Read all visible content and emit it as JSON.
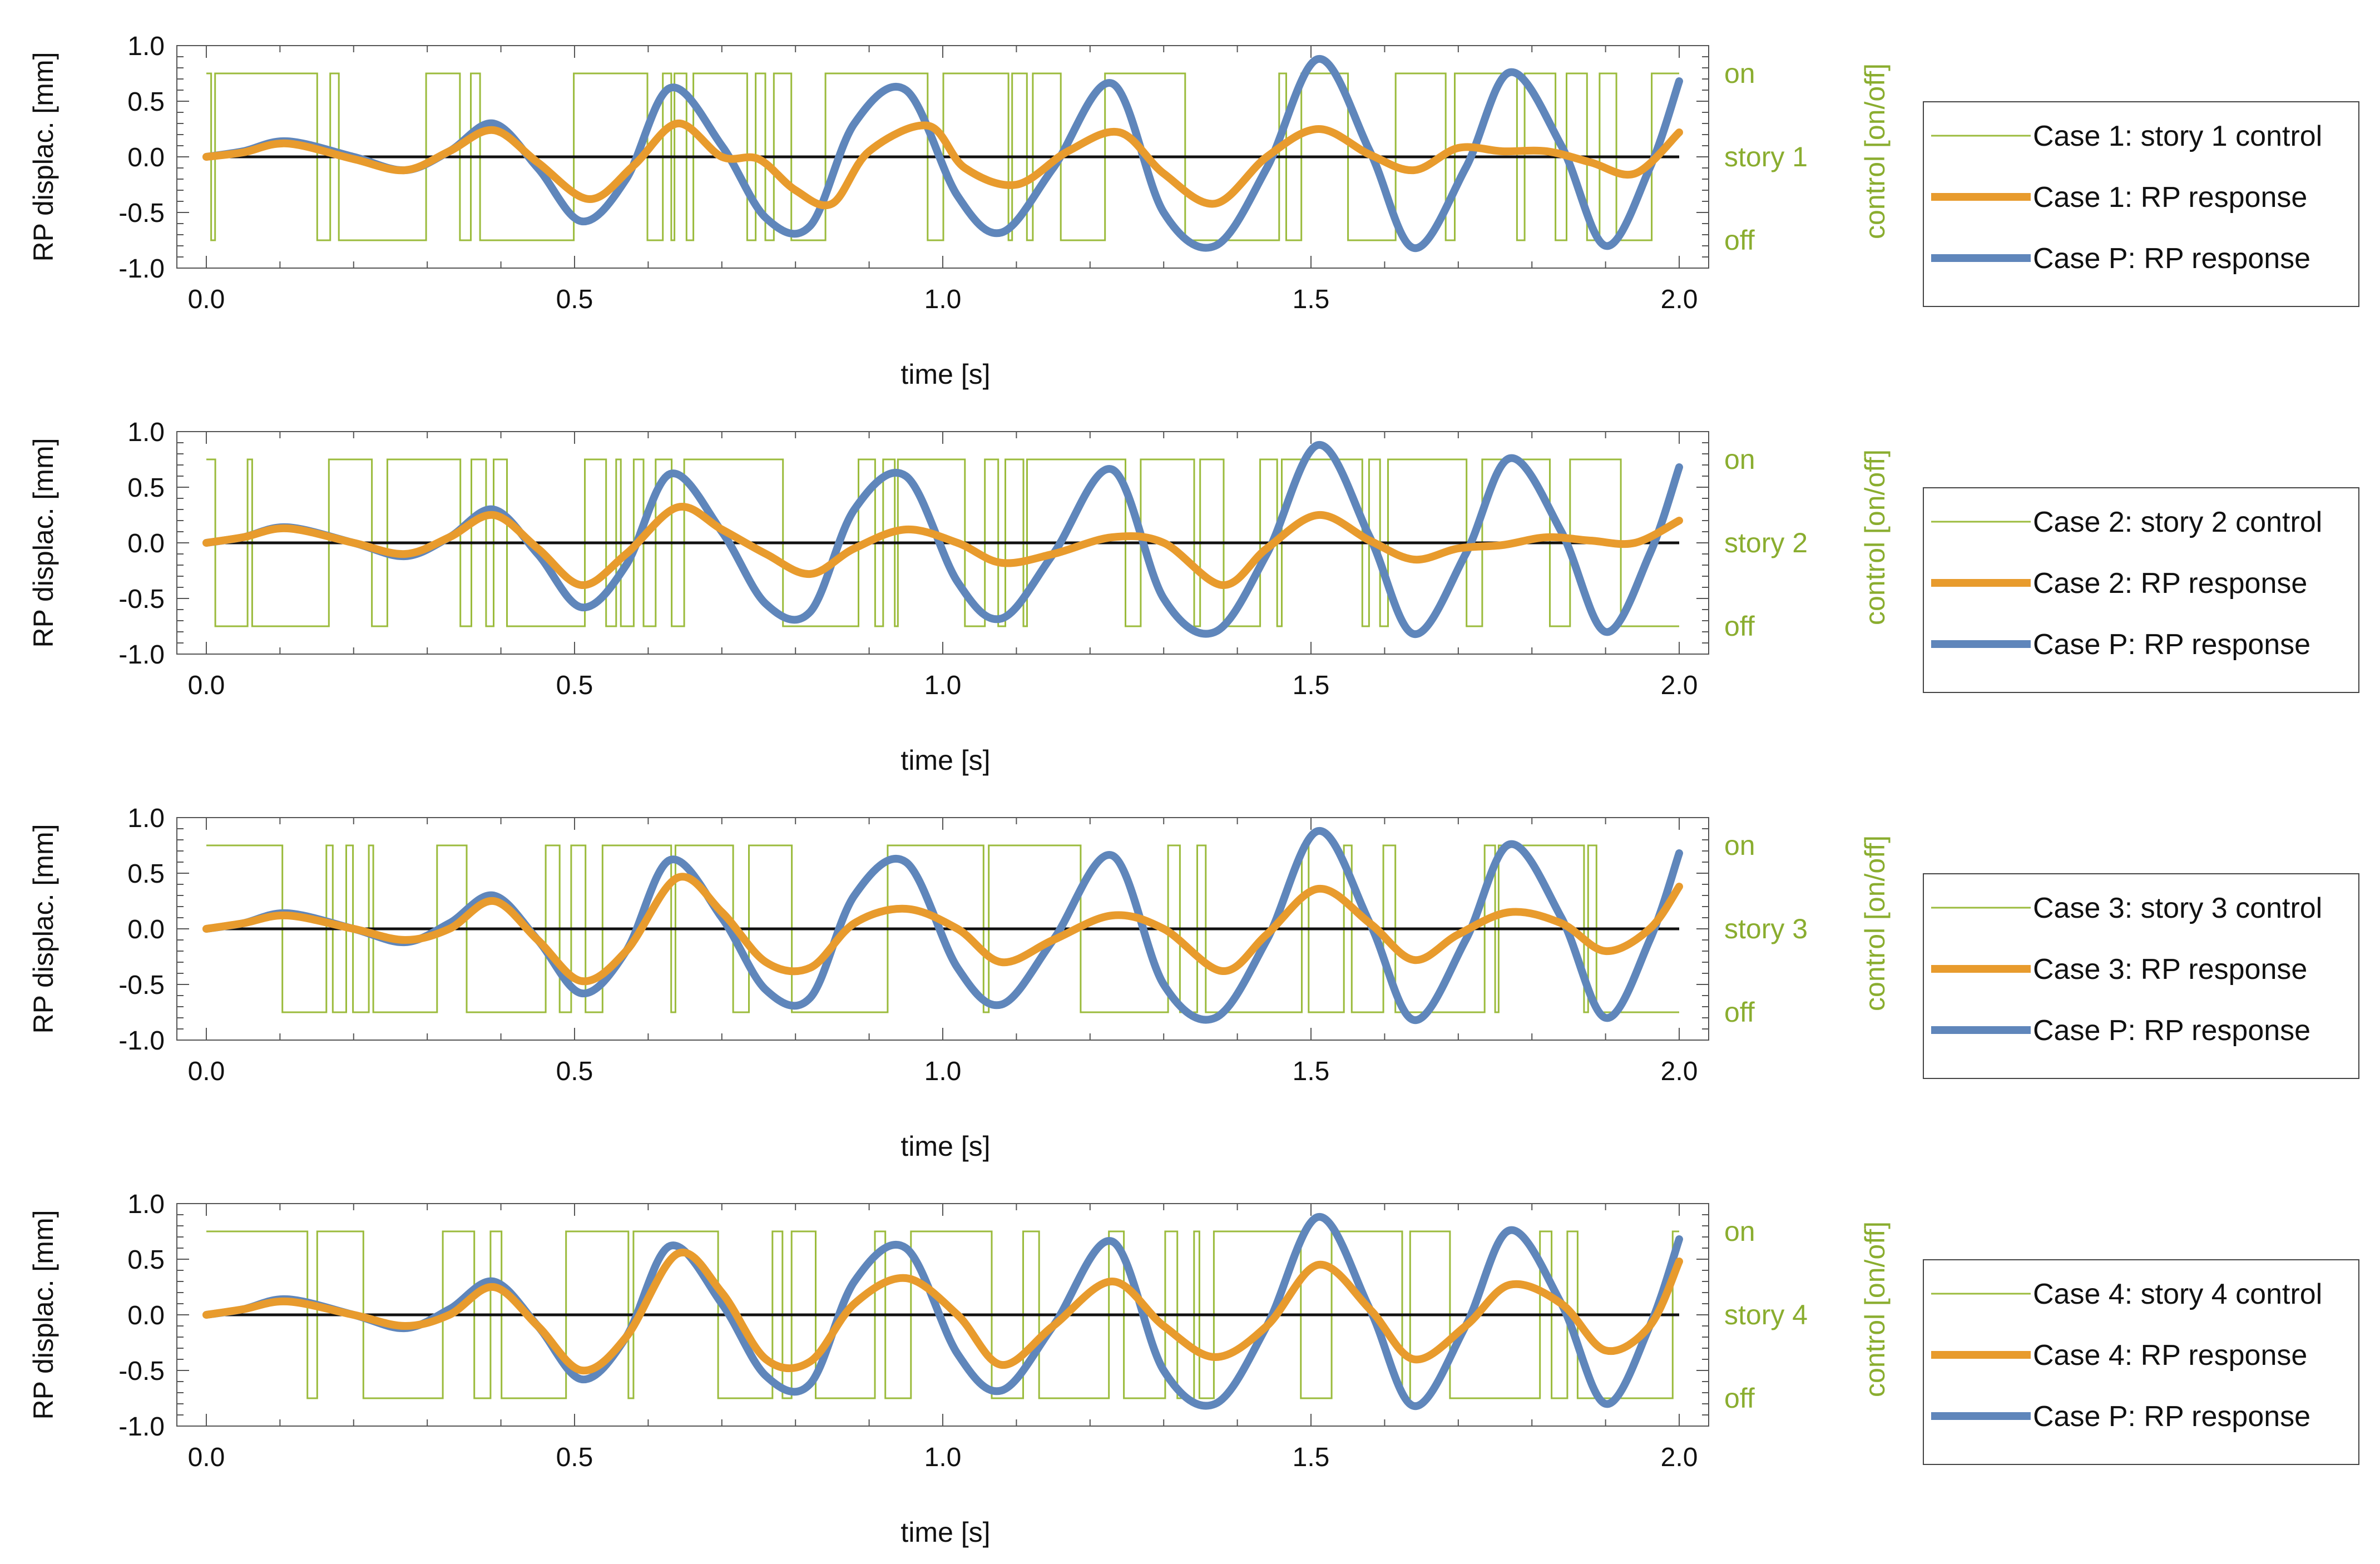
{
  "colors": {
    "control": "#9bbb3c",
    "case_rp": "#e89b2d",
    "case_p": "#5f86bb",
    "axis": "#222222",
    "ctrl_text": "#8aad2f"
  },
  "axes": {
    "xlabel": "time [s]",
    "ylabel": "RP displac. [mm]",
    "right_label": "control [on/off]",
    "xlim": [
      -0.04,
      2.04
    ],
    "ylim": [
      -1.0,
      1.0
    ],
    "xticks": [
      "0.0",
      "0.5",
      "1.0",
      "1.5",
      "2.0"
    ],
    "yticks": [
      "1.0",
      "0.5",
      "0.0",
      "-0.5",
      "-1.0"
    ],
    "ctrl_on_label": "on",
    "ctrl_off_label": "off"
  },
  "chart_data": [
    {
      "type": "line",
      "story_label": "story 1",
      "legend": [
        "Case 1: story 1 control",
        "Case 1: RP response",
        "Case P: RP response"
      ],
      "series": [
        {
          "name": "Case P: RP response",
          "x": [
            0,
            0.05,
            0.11,
            0.2,
            0.27,
            0.33,
            0.39,
            0.45,
            0.51,
            0.57,
            0.63,
            0.7,
            0.76,
            0.82,
            0.88,
            0.95,
            1.02,
            1.08,
            1.15,
            1.23,
            1.3,
            1.37,
            1.44,
            1.51,
            1.58,
            1.64,
            1.71,
            1.77,
            1.84,
            1.9,
            1.96,
            2.0
          ],
          "y": [
            0,
            0.05,
            0.14,
            0.0,
            -0.12,
            0.05,
            0.3,
            -0.1,
            -0.58,
            -0.2,
            0.62,
            0.1,
            -0.55,
            -0.62,
            0.3,
            0.6,
            -0.35,
            -0.68,
            -0.1,
            0.66,
            -0.5,
            -0.8,
            -0.1,
            0.88,
            0.05,
            -0.82,
            -0.1,
            0.76,
            0.1,
            -0.8,
            -0.1,
            0.68
          ]
        },
        {
          "name": "Case 1: RP response",
          "x": [
            0,
            0.05,
            0.11,
            0.2,
            0.27,
            0.33,
            0.39,
            0.45,
            0.52,
            0.58,
            0.64,
            0.7,
            0.75,
            0.8,
            0.85,
            0.9,
            0.98,
            1.03,
            1.1,
            1.17,
            1.24,
            1.3,
            1.37,
            1.44,
            1.51,
            1.58,
            1.64,
            1.7,
            1.76,
            1.82,
            1.88,
            1.94,
            2.0
          ],
          "y": [
            0,
            0.04,
            0.12,
            -0.02,
            -0.12,
            0.05,
            0.24,
            -0.05,
            -0.38,
            -0.08,
            0.3,
            0.0,
            -0.02,
            -0.3,
            -0.42,
            0.05,
            0.28,
            -0.1,
            -0.25,
            0.05,
            0.22,
            -0.15,
            -0.42,
            0.0,
            0.25,
            0.02,
            -0.12,
            0.08,
            0.05,
            0.05,
            -0.05,
            -0.15,
            0.22
          ]
        }
      ],
      "control": [
        0.75,
        -0.75,
        0.75,
        -0.75,
        0.75,
        -0.75,
        0.75,
        -0.75,
        0.75,
        -0.75,
        0.75,
        -0.75,
        0.75,
        -0.75,
        0.75,
        -0.75
      ]
    },
    {
      "type": "line",
      "story_label": "story 2",
      "legend": [
        "Case 2: story 2 control",
        "Case 2: RP response",
        "Case P: RP response"
      ],
      "series": [
        {
          "name": "Case P: RP response",
          "x": [
            0,
            0.05,
            0.11,
            0.2,
            0.27,
            0.33,
            0.39,
            0.45,
            0.51,
            0.57,
            0.63,
            0.7,
            0.76,
            0.82,
            0.88,
            0.95,
            1.02,
            1.08,
            1.15,
            1.23,
            1.3,
            1.37,
            1.44,
            1.51,
            1.58,
            1.64,
            1.71,
            1.77,
            1.84,
            1.9,
            1.96,
            2.0
          ],
          "y": [
            0,
            0.05,
            0.14,
            0.0,
            -0.12,
            0.05,
            0.3,
            -0.1,
            -0.58,
            -0.2,
            0.62,
            0.1,
            -0.55,
            -0.62,
            0.3,
            0.6,
            -0.35,
            -0.68,
            -0.1,
            0.66,
            -0.5,
            -0.8,
            -0.1,
            0.88,
            0.05,
            -0.82,
            -0.1,
            0.76,
            0.1,
            -0.8,
            -0.1,
            0.68
          ]
        },
        {
          "name": "Case 2: RP response",
          "x": [
            0,
            0.05,
            0.11,
            0.2,
            0.27,
            0.33,
            0.39,
            0.45,
            0.51,
            0.57,
            0.64,
            0.7,
            0.76,
            0.82,
            0.88,
            0.95,
            1.02,
            1.08,
            1.15,
            1.23,
            1.3,
            1.38,
            1.44,
            1.51,
            1.58,
            1.64,
            1.7,
            1.76,
            1.82,
            1.88,
            1.94,
            2.0
          ],
          "y": [
            0,
            0.05,
            0.13,
            0.0,
            -0.1,
            0.05,
            0.25,
            -0.05,
            -0.38,
            -0.1,
            0.32,
            0.12,
            -0.1,
            -0.28,
            -0.05,
            0.12,
            0.0,
            -0.18,
            -0.1,
            0.05,
            0.0,
            -0.38,
            -0.05,
            0.25,
            0.02,
            -0.15,
            -0.05,
            -0.02,
            0.05,
            0.02,
            0.0,
            0.2
          ]
        }
      ],
      "control": [
        0.75,
        -0.75,
        0.75,
        -0.75,
        0.75,
        -0.75,
        0.75,
        -0.75,
        0.75,
        -0.75,
        0.75,
        -0.75,
        0.75,
        -0.75,
        0.75,
        -0.75
      ]
    },
    {
      "type": "line",
      "story_label": "story 3",
      "legend": [
        "Case 3: story 3 control",
        "Case 3: RP response",
        "Case P: RP response"
      ],
      "series": [
        {
          "name": "Case P: RP response",
          "x": [
            0,
            0.05,
            0.11,
            0.2,
            0.27,
            0.33,
            0.39,
            0.45,
            0.51,
            0.57,
            0.63,
            0.7,
            0.76,
            0.82,
            0.88,
            0.95,
            1.02,
            1.08,
            1.15,
            1.23,
            1.3,
            1.37,
            1.44,
            1.51,
            1.58,
            1.64,
            1.71,
            1.77,
            1.84,
            1.9,
            1.96,
            2.0
          ],
          "y": [
            0,
            0.05,
            0.14,
            0.0,
            -0.12,
            0.05,
            0.3,
            -0.1,
            -0.58,
            -0.2,
            0.62,
            0.1,
            -0.55,
            -0.62,
            0.3,
            0.6,
            -0.35,
            -0.68,
            -0.1,
            0.66,
            -0.5,
            -0.8,
            -0.1,
            0.88,
            0.05,
            -0.82,
            -0.1,
            0.76,
            0.1,
            -0.8,
            -0.1,
            0.68
          ]
        },
        {
          "name": "Case 3: RP response",
          "x": [
            0,
            0.05,
            0.11,
            0.2,
            0.27,
            0.33,
            0.39,
            0.45,
            0.51,
            0.57,
            0.64,
            0.7,
            0.76,
            0.82,
            0.88,
            0.95,
            1.02,
            1.08,
            1.15,
            1.23,
            1.3,
            1.38,
            1.44,
            1.51,
            1.58,
            1.64,
            1.7,
            1.77,
            1.84,
            1.9,
            1.96,
            2.0
          ],
          "y": [
            0,
            0.05,
            0.12,
            0.0,
            -0.1,
            0.0,
            0.25,
            -0.1,
            -0.47,
            -0.2,
            0.46,
            0.15,
            -0.3,
            -0.35,
            0.05,
            0.18,
            0.0,
            -0.3,
            -0.1,
            0.12,
            0.0,
            -0.38,
            -0.05,
            0.36,
            0.05,
            -0.28,
            -0.05,
            0.15,
            0.05,
            -0.2,
            0.0,
            0.38
          ]
        }
      ],
      "control": [
        0.75,
        -0.75,
        0.75,
        -0.75,
        0.75,
        -0.75,
        0.75,
        -0.75,
        0.75,
        -0.75,
        0.75,
        -0.75,
        0.75,
        -0.75,
        0.75,
        -0.75
      ]
    },
    {
      "type": "line",
      "story_label": "story 4",
      "legend": [
        "Case 4: story 4 control",
        "Case 4: RP response",
        "Case P: RP response"
      ],
      "series": [
        {
          "name": "Case P: RP response",
          "x": [
            0,
            0.05,
            0.11,
            0.2,
            0.27,
            0.33,
            0.39,
            0.45,
            0.51,
            0.57,
            0.63,
            0.7,
            0.76,
            0.82,
            0.88,
            0.95,
            1.02,
            1.08,
            1.15,
            1.23,
            1.3,
            1.37,
            1.44,
            1.51,
            1.58,
            1.64,
            1.71,
            1.77,
            1.84,
            1.9,
            1.96,
            2.0
          ],
          "y": [
            0,
            0.05,
            0.14,
            0.0,
            -0.12,
            0.05,
            0.3,
            -0.1,
            -0.58,
            -0.2,
            0.62,
            0.1,
            -0.55,
            -0.62,
            0.3,
            0.6,
            -0.35,
            -0.68,
            -0.1,
            0.66,
            -0.5,
            -0.8,
            -0.1,
            0.88,
            0.05,
            -0.82,
            -0.1,
            0.76,
            0.1,
            -0.8,
            -0.1,
            0.68
          ]
        },
        {
          "name": "Case 4: RP response",
          "x": [
            0,
            0.05,
            0.11,
            0.2,
            0.27,
            0.33,
            0.39,
            0.45,
            0.51,
            0.57,
            0.64,
            0.7,
            0.76,
            0.82,
            0.88,
            0.95,
            1.02,
            1.08,
            1.15,
            1.23,
            1.3,
            1.37,
            1.44,
            1.51,
            1.58,
            1.64,
            1.71,
            1.77,
            1.84,
            1.9,
            1.96,
            2.0
          ],
          "y": [
            0,
            0.05,
            0.12,
            0.0,
            -0.1,
            0.0,
            0.25,
            -0.1,
            -0.5,
            -0.2,
            0.55,
            0.2,
            -0.4,
            -0.42,
            0.1,
            0.33,
            0.0,
            -0.45,
            -0.1,
            0.3,
            -0.1,
            -0.38,
            -0.1,
            0.45,
            0.05,
            -0.4,
            -0.1,
            0.27,
            0.1,
            -0.32,
            -0.1,
            0.48
          ]
        }
      ],
      "control": [
        0.75,
        -0.75,
        0.75,
        -0.75,
        0.75,
        -0.75,
        0.75,
        -0.75,
        0.75,
        -0.75,
        0.75,
        -0.75,
        0.75,
        -0.75,
        0.75,
        -0.75
      ]
    }
  ]
}
